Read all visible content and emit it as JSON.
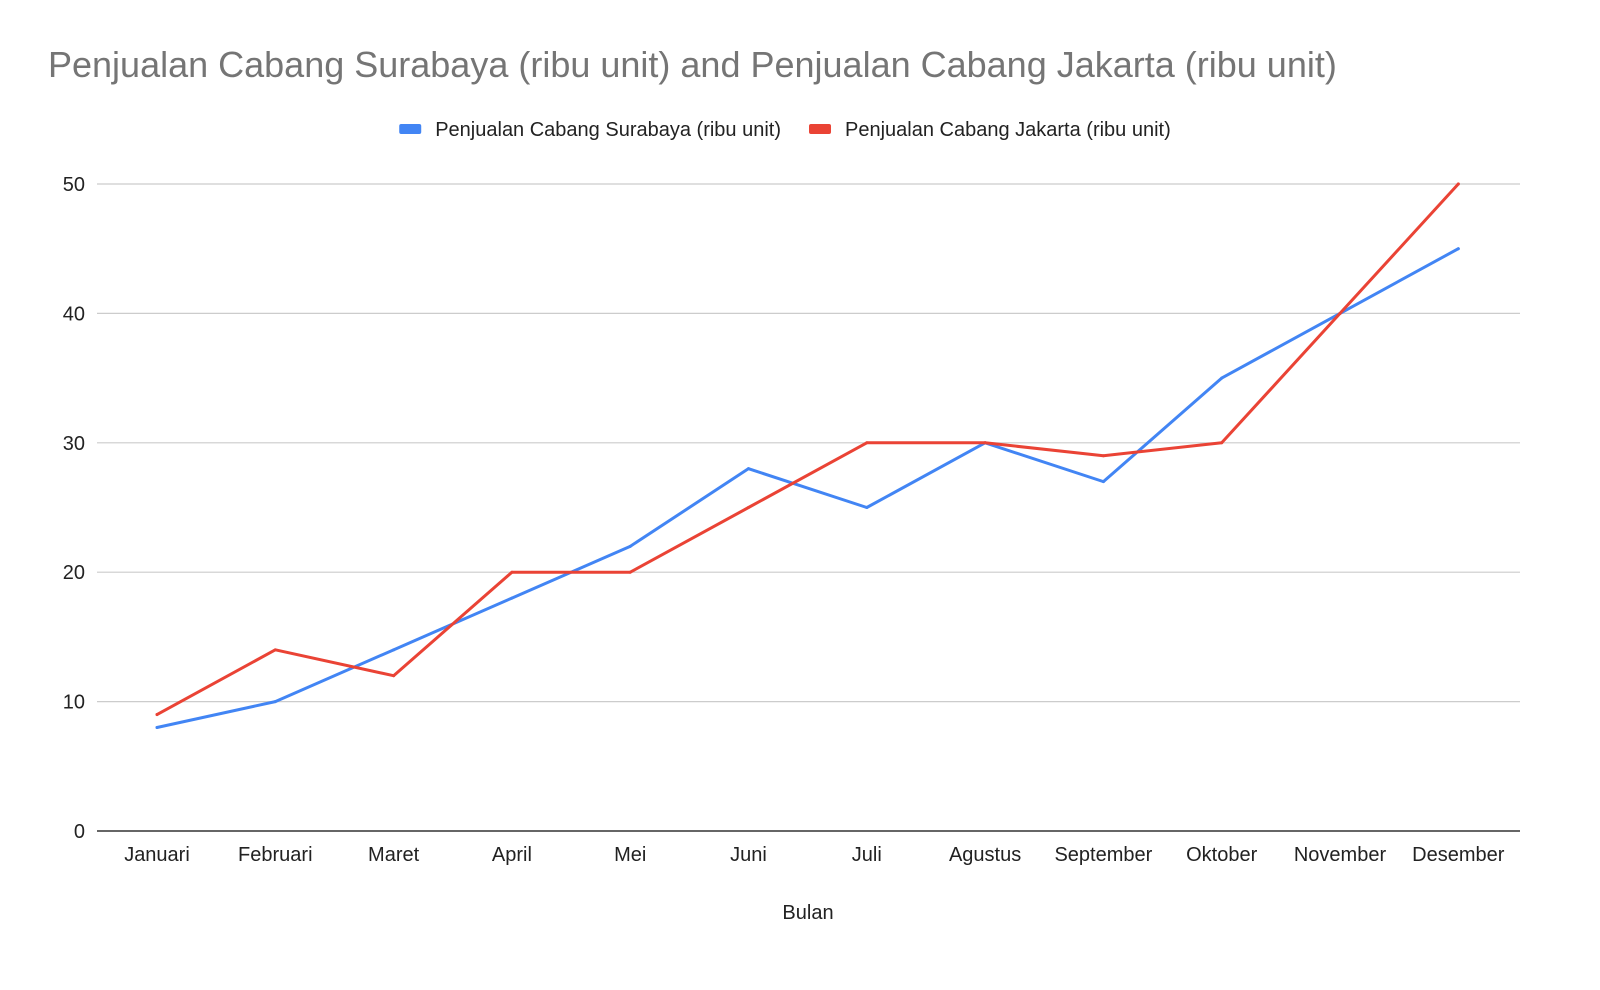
{
  "chart_data": {
    "type": "line",
    "title": "Penjualan Cabang Surabaya (ribu unit) and Penjualan Cabang Jakarta (ribu unit)",
    "xlabel": "Bulan",
    "ylabel": "",
    "categories": [
      "Januari",
      "Februari",
      "Maret",
      "April",
      "Mei",
      "Juni",
      "Juli",
      "Agustus",
      "September",
      "Oktober",
      "November",
      "Desember"
    ],
    "series": [
      {
        "name": "Penjualan Cabang Surabaya (ribu unit)",
        "color": "#4285f4",
        "values": [
          8,
          10,
          14,
          18,
          22,
          28,
          25,
          30,
          27,
          35,
          40,
          45
        ]
      },
      {
        "name": "Penjualan Cabang Jakarta (ribu unit)",
        "color": "#ea4335",
        "values": [
          9,
          14,
          12,
          20,
          20,
          25,
          30,
          30,
          29,
          30,
          40,
          50
        ]
      }
    ],
    "ylim": [
      0,
      50
    ],
    "yticks": [
      0,
      10,
      20,
      30,
      40,
      50
    ],
    "grid": true,
    "legend_position": "top-center"
  }
}
